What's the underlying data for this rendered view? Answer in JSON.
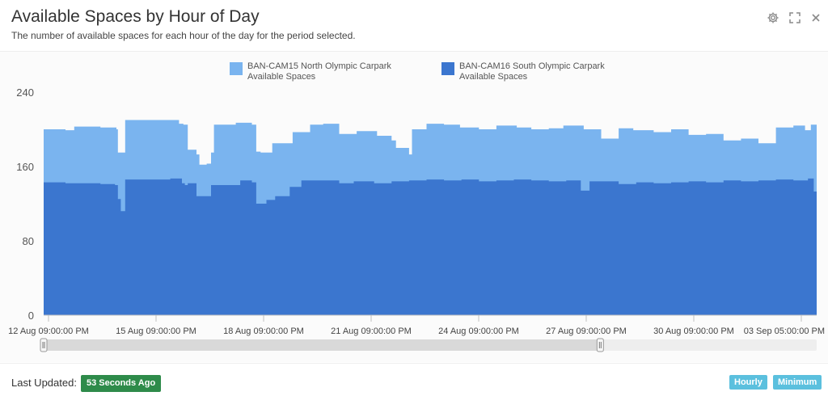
{
  "header": {
    "title": "Available Spaces by Hour of Day",
    "subtitle": "The number of available spaces for each hour of the day for the period selected."
  },
  "icons": [
    "gear-icon",
    "fullscreen-icon",
    "close-icon"
  ],
  "colors": {
    "series_north": "#7ab4ef",
    "series_south": "#3b76cf",
    "scroller_track": "#d9d9d9",
    "badge_green": "#2e8b4a",
    "button_blue": "#5bc0de"
  },
  "footer": {
    "updated_label": "Last Updated:",
    "updated_value": "53 Seconds Ago",
    "hourly_button": "Hourly",
    "minimum_button": "Minimum"
  },
  "chart_data": {
    "type": "area",
    "stacked": true,
    "title": "Available Spaces by Hour of Day",
    "ylim": [
      0,
      240
    ],
    "yticks": [
      0,
      80,
      160,
      240
    ],
    "grid": false,
    "legend_position": "top",
    "xtick_labels": [
      "12 Aug 09:00:00 PM",
      "15 Aug 09:00:00 PM",
      "18 Aug 09:00:00 PM",
      "21 Aug 09:00:00 PM",
      "24 Aug 09:00:00 PM",
      "27 Aug 09:00:00 PM",
      "30 Aug 09:00:00 PM",
      "03 Sep 05:00:00 PM"
    ],
    "x_start": "2023-08-12 21:00",
    "x_end": "2023-09-04 00:00",
    "series": [
      {
        "name": "BAN-CAM15 North Olympic Carpark Available Spaces",
        "color": "#7ab4ef",
        "points": [
          [
            "2023-08-12 21:00",
            200
          ],
          [
            "2023-08-13 12:00",
            199
          ],
          [
            "2023-08-13 18:00",
            203
          ],
          [
            "2023-08-14 12:00",
            202
          ],
          [
            "2023-08-14 23:00",
            200
          ],
          [
            "2023-08-15 00:00",
            175
          ],
          [
            "2023-08-15 05:00",
            210
          ],
          [
            "2023-08-16 12:00",
            210
          ],
          [
            "2023-08-16 18:00",
            206
          ],
          [
            "2023-08-16 21:00",
            205
          ],
          [
            "2023-08-17 00:00",
            178
          ],
          [
            "2023-08-17 06:00",
            173
          ],
          [
            "2023-08-17 08:00",
            162
          ],
          [
            "2023-08-17 13:00",
            163
          ],
          [
            "2023-08-17 16:00",
            175
          ],
          [
            "2023-08-17 18:00",
            205
          ],
          [
            "2023-08-18 09:00",
            207
          ],
          [
            "2023-08-18 20:00",
            205
          ],
          [
            "2023-08-18 23:00",
            176
          ],
          [
            "2023-08-19 02:00",
            175
          ],
          [
            "2023-08-19 10:00",
            185
          ],
          [
            "2023-08-20 00:00",
            197
          ],
          [
            "2023-08-20 12:00",
            205
          ],
          [
            "2023-08-20 21:00",
            206
          ],
          [
            "2023-08-21 08:00",
            195
          ],
          [
            "2023-08-21 20:00",
            198
          ],
          [
            "2023-08-22 10:00",
            193
          ],
          [
            "2023-08-22 20:00",
            188
          ],
          [
            "2023-08-22 23:00",
            180
          ],
          [
            "2023-08-23 08:00",
            173
          ],
          [
            "2023-08-23 10:00",
            200
          ],
          [
            "2023-08-23 20:00",
            206
          ],
          [
            "2023-08-24 08:00",
            205
          ],
          [
            "2023-08-24 19:00",
            202
          ],
          [
            "2023-08-25 08:00",
            200
          ],
          [
            "2023-08-25 20:00",
            204
          ],
          [
            "2023-08-26 10:00",
            202
          ],
          [
            "2023-08-26 20:00",
            200
          ],
          [
            "2023-08-27 08:00",
            201
          ],
          [
            "2023-08-27 18:00",
            204
          ],
          [
            "2023-08-28 08:00",
            200
          ],
          [
            "2023-08-28 20:00",
            190
          ],
          [
            "2023-08-29 08:00",
            201
          ],
          [
            "2023-08-29 18:00",
            199
          ],
          [
            "2023-08-30 08:00",
            197
          ],
          [
            "2023-08-30 20:00",
            200
          ],
          [
            "2023-08-31 08:00",
            194
          ],
          [
            "2023-08-31 20:00",
            195
          ],
          [
            "2023-09-01 08:00",
            188
          ],
          [
            "2023-09-01 20:00",
            190
          ],
          [
            "2023-09-02 08:00",
            185
          ],
          [
            "2023-09-02 20:00",
            202
          ],
          [
            "2023-09-03 08:00",
            204
          ],
          [
            "2023-09-03 16:00",
            199
          ],
          [
            "2023-09-03 20:00",
            205
          ],
          [
            "2023-09-04 00:00",
            200
          ]
        ]
      },
      {
        "name": "BAN-CAM16 South Olympic Carpark Available Spaces",
        "color": "#3b76cf",
        "points": [
          [
            "2023-08-12 21:00",
            143
          ],
          [
            "2023-08-13 12:00",
            142
          ],
          [
            "2023-08-14 12:00",
            141
          ],
          [
            "2023-08-14 22:00",
            140
          ],
          [
            "2023-08-15 00:00",
            125
          ],
          [
            "2023-08-15 02:00",
            112
          ],
          [
            "2023-08-15 05:00",
            146
          ],
          [
            "2023-08-16 12:00",
            147
          ],
          [
            "2023-08-16 20:00",
            142
          ],
          [
            "2023-08-16 22:00",
            140
          ],
          [
            "2023-08-17 00:00",
            142
          ],
          [
            "2023-08-17 06:00",
            128
          ],
          [
            "2023-08-17 12:00",
            128
          ],
          [
            "2023-08-17 16:00",
            140
          ],
          [
            "2023-08-18 12:00",
            145
          ],
          [
            "2023-08-18 20:00",
            143
          ],
          [
            "2023-08-18 23:00",
            120
          ],
          [
            "2023-08-19 06:00",
            124
          ],
          [
            "2023-08-19 12:00",
            128
          ],
          [
            "2023-08-19 22:00",
            138
          ],
          [
            "2023-08-20 06:00",
            145
          ],
          [
            "2023-08-20 20:00",
            145
          ],
          [
            "2023-08-21 08:00",
            142
          ],
          [
            "2023-08-21 18:00",
            144
          ],
          [
            "2023-08-22 08:00",
            142
          ],
          [
            "2023-08-22 20:00",
            144
          ],
          [
            "2023-08-23 08:00",
            145
          ],
          [
            "2023-08-23 20:00",
            146
          ],
          [
            "2023-08-24 08:00",
            145
          ],
          [
            "2023-08-24 20:00",
            146
          ],
          [
            "2023-08-25 08:00",
            144
          ],
          [
            "2023-08-25 20:00",
            145
          ],
          [
            "2023-08-26 08:00",
            146
          ],
          [
            "2023-08-26 20:00",
            145
          ],
          [
            "2023-08-27 08:00",
            144
          ],
          [
            "2023-08-27 20:00",
            145
          ],
          [
            "2023-08-28 06:00",
            134
          ],
          [
            "2023-08-28 12:00",
            144
          ],
          [
            "2023-08-29 08:00",
            141
          ],
          [
            "2023-08-29 20:00",
            143
          ],
          [
            "2023-08-30 08:00",
            142
          ],
          [
            "2023-08-30 20:00",
            143
          ],
          [
            "2023-08-31 08:00",
            144
          ],
          [
            "2023-08-31 20:00",
            143
          ],
          [
            "2023-09-01 08:00",
            145
          ],
          [
            "2023-09-01 20:00",
            144
          ],
          [
            "2023-09-02 08:00",
            145
          ],
          [
            "2023-09-02 20:00",
            146
          ],
          [
            "2023-09-03 08:00",
            145
          ],
          [
            "2023-09-03 18:00",
            147
          ],
          [
            "2023-09-03 22:00",
            133
          ],
          [
            "2023-09-04 00:00",
            146
          ]
        ]
      }
    ],
    "navigator": {
      "visible": true,
      "range_start_fraction": 0.0,
      "range_end_fraction": 0.72
    }
  }
}
